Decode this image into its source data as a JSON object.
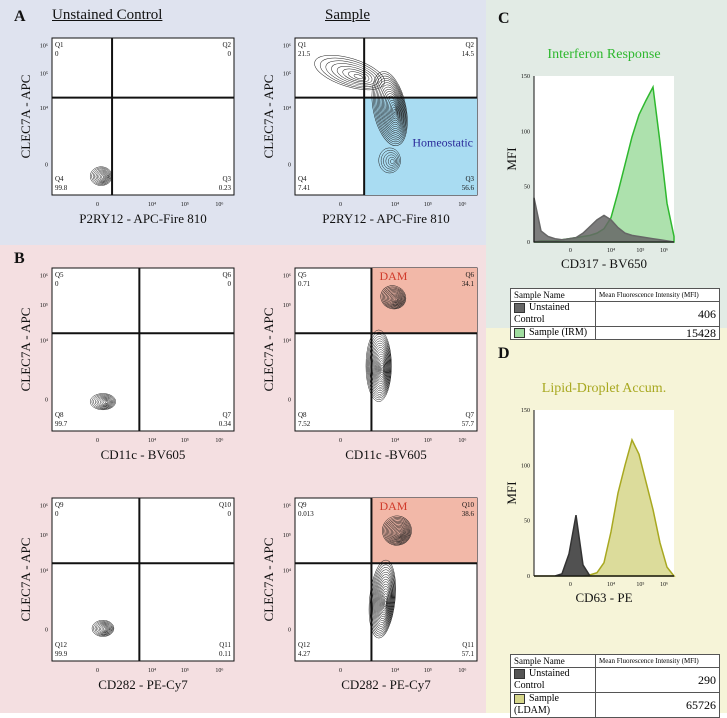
{
  "panels": {
    "A": "A",
    "B": "B",
    "C": "C",
    "D": "D",
    "col_unstained": "Unstained Control",
    "col_sample": "Sample"
  },
  "contour_plots": {
    "a1": {
      "ylabel": "CLEC7A - APC",
      "xlabel": "P2RY12 - APC-Fire 810",
      "q": [
        {
          "n": "Q1",
          "v": "0"
        },
        {
          "n": "Q2",
          "v": "0"
        },
        {
          "n": "Q3",
          "v": "0.23"
        },
        {
          "n": "Q4",
          "v": "99.8"
        }
      ],
      "gate_label": ""
    },
    "a2": {
      "ylabel": "CLEC7A - APC",
      "xlabel": "P2RY12 - APC-Fire 810",
      "q": [
        {
          "n": "Q1",
          "v": "21.5"
        },
        {
          "n": "Q2",
          "v": "14.5"
        },
        {
          "n": "Q3",
          "v": "56.6"
        },
        {
          "n": "Q4",
          "v": "7.41"
        }
      ],
      "gate_label": "Homeostatic"
    },
    "b1": {
      "ylabel": "CLEC7A - APC",
      "xlabel": "CD11c - BV605",
      "q": [
        {
          "n": "Q5",
          "v": "0"
        },
        {
          "n": "Q6",
          "v": "0"
        },
        {
          "n": "Q7",
          "v": "0.34"
        },
        {
          "n": "Q8",
          "v": "99.7"
        }
      ],
      "gate_label": ""
    },
    "b2": {
      "ylabel": "CLEC7A - APC",
      "xlabel": "CD11c -BV605",
      "q": [
        {
          "n": "Q5",
          "v": "0.71"
        },
        {
          "n": "Q6",
          "v": "34.1"
        },
        {
          "n": "Q7",
          "v": "57.7"
        },
        {
          "n": "Q8",
          "v": "7.52"
        }
      ],
      "gate_label": "DAM"
    },
    "b3": {
      "ylabel": "CLEC7A - APC",
      "xlabel": "CD282 - PE-Cy7",
      "q": [
        {
          "n": "Q9",
          "v": "0"
        },
        {
          "n": "Q10",
          "v": "0"
        },
        {
          "n": "Q11",
          "v": "0.11"
        },
        {
          "n": "Q12",
          "v": "99.9"
        }
      ],
      "gate_label": ""
    },
    "b4": {
      "ylabel": "CLEC7A - APC",
      "xlabel": "CD282 - PE-Cy7",
      "q": [
        {
          "n": "Q9",
          "v": "0.013"
        },
        {
          "n": "Q10",
          "v": "38.6"
        },
        {
          "n": "Q11",
          "v": "57.1"
        },
        {
          "n": "Q12",
          "v": "4.27"
        }
      ],
      "gate_label": "DAM"
    }
  },
  "axis_ticks": [
    "0",
    "10⁴",
    "10⁵",
    "10⁶"
  ],
  "chart_data": [
    {
      "type": "area",
      "title": "Interferon Response",
      "xlabel": "CD317 - BV650",
      "ylabel": "MFI",
      "ylim": [
        0,
        150
      ],
      "yticks": [
        "0",
        "50",
        "100",
        "150"
      ],
      "xticks": [
        "0",
        "10⁴",
        "10⁵",
        "10⁶"
      ],
      "x": [
        0,
        0.3,
        0.6,
        0.9,
        1.2,
        1.5,
        1.8,
        2.1,
        2.4,
        2.7,
        3.0,
        3.3,
        3.6,
        3.9,
        4.2,
        4.5,
        4.8,
        5.1,
        5.4,
        5.7,
        6.0
      ],
      "series": [
        {
          "name": "Unstained Control",
          "color": "#666666",
          "values": [
            40,
            10,
            5,
            3,
            2,
            3,
            4,
            8,
            14,
            20,
            24,
            20,
            13,
            8,
            6,
            5,
            4,
            3,
            2,
            1,
            0
          ]
        },
        {
          "name": "Sample (IRM)",
          "color": "#2eb82e",
          "fill": "#9fdc9f",
          "values": [
            0,
            1,
            1,
            1,
            2,
            3,
            4,
            5,
            6,
            8,
            12,
            22,
            45,
            70,
            95,
            115,
            128,
            140,
            90,
            35,
            5
          ]
        }
      ],
      "table": {
        "header_name": "Sample Name",
        "header_mfi": "Mean Fluorescence Intensity (MFI)",
        "rows": [
          {
            "name": "Unstained Control",
            "mfi": "406",
            "color": "#666666"
          },
          {
            "name": "Sample (IRM)",
            "mfi": "15428",
            "color": "#9fdc9f"
          }
        ]
      }
    },
    {
      "type": "area",
      "title": "Lipid-Droplet Accum.",
      "xlabel": "CD63 - PE",
      "ylabel": "MFI",
      "ylim": [
        0,
        150
      ],
      "yticks": [
        "0",
        "50",
        "100",
        "150"
      ],
      "xticks": [
        "0",
        "10⁴",
        "10⁵",
        "10⁶"
      ],
      "x": [
        0,
        0.3,
        0.6,
        0.9,
        1.2,
        1.5,
        1.8,
        2.1,
        2.4,
        2.7,
        3.0,
        3.3,
        3.6,
        3.9,
        4.2,
        4.5,
        4.8,
        5.1,
        5.4,
        5.7,
        6.0
      ],
      "series": [
        {
          "name": "Unstained Control",
          "color": "#333333",
          "values": [
            0,
            0,
            0,
            0,
            2,
            20,
            55,
            10,
            0,
            0,
            0,
            0,
            0,
            0,
            0,
            0,
            0,
            0,
            0,
            0,
            0
          ]
        },
        {
          "name": "Sample (LDAM)",
          "color": "#a8a820",
          "fill": "#d6d68a",
          "values": [
            0,
            0,
            0,
            0,
            0,
            0,
            0,
            0,
            1,
            3,
            12,
            40,
            75,
            100,
            123,
            110,
            85,
            60,
            30,
            8,
            0
          ]
        }
      ],
      "table": {
        "header_name": "Sample Name",
        "header_mfi": "Mean Fluorescence Intensity (MFI)",
        "rows": [
          {
            "name": "Unstained Control",
            "mfi": "290",
            "color": "#555555"
          },
          {
            "name": "Sample (LDAM)",
            "mfi": "65726",
            "color": "#d6d68a"
          }
        ]
      }
    }
  ]
}
